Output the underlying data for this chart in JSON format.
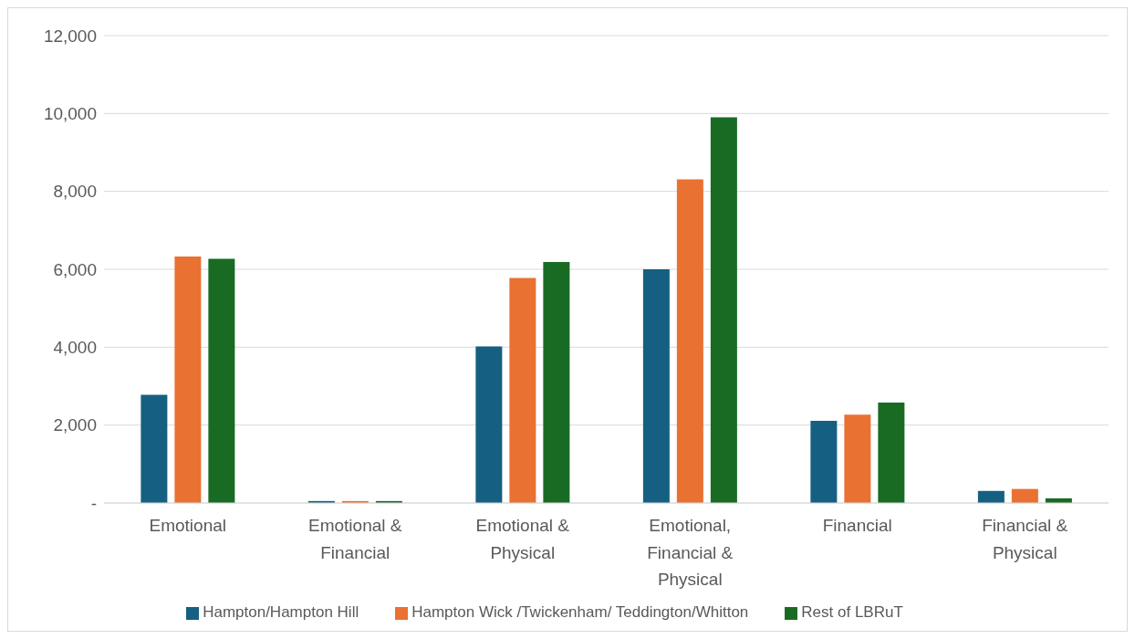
{
  "chart_data": {
    "type": "bar",
    "categories": [
      "Emotional",
      "Emotional & Financial",
      "Emotional & Physical",
      "Emotional, Financial & Physical",
      "Financial",
      "Financial & Physical"
    ],
    "series": [
      {
        "name": "Hampton/Hampton Hill",
        "color": "#156082",
        "values": [
          2780,
          50,
          4020,
          6000,
          2110,
          310
        ]
      },
      {
        "name": "Hampton Wick /Twickenham/ Teddington/Whitton",
        "color": "#e97132",
        "values": [
          6330,
          50,
          5780,
          8310,
          2270,
          360
        ]
      },
      {
        "name": "Rest of LBRuT",
        "color": "#196b24",
        "values": [
          6270,
          50,
          6190,
          9900,
          2580,
          120
        ]
      }
    ],
    "ylim": [
      0,
      12000
    ],
    "yticks": [
      {
        "value": 0,
        "label": "-"
      },
      {
        "value": 2000,
        "label": "2,000"
      },
      {
        "value": 4000,
        "label": "4,000"
      },
      {
        "value": 6000,
        "label": "6,000"
      },
      {
        "value": 8000,
        "label": "8,000"
      },
      {
        "value": 10000,
        "label": "10,000"
      },
      {
        "value": 12000,
        "label": "12,000"
      }
    ],
    "grid": "y",
    "legend": "bottom"
  }
}
